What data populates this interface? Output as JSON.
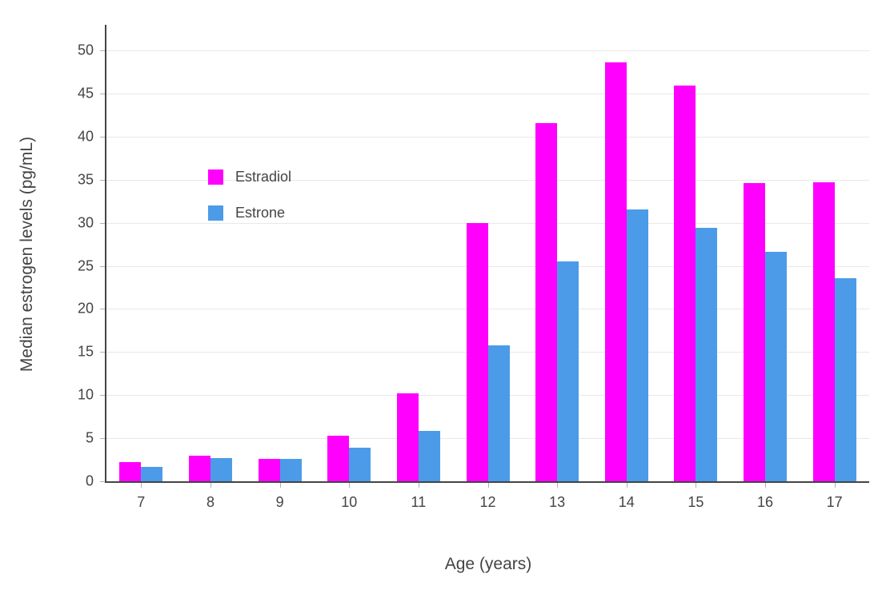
{
  "chart_data": {
    "type": "bar",
    "title": "",
    "xlabel": "Age (years)",
    "ylabel": "Median estrogen levels (pg/mL)",
    "categories": [
      "7",
      "8",
      "9",
      "10",
      "11",
      "12",
      "13",
      "14",
      "15",
      "16",
      "17"
    ],
    "series": [
      {
        "name": "Estradiol",
        "color": "#FF00FF",
        "values": [
          2.2,
          3.0,
          2.6,
          5.3,
          10.2,
          30.0,
          41.6,
          48.6,
          45.9,
          34.6,
          34.7
        ]
      },
      {
        "name": "Estrone",
        "color": "#4C9BE8",
        "values": [
          1.7,
          2.7,
          2.6,
          3.9,
          5.8,
          15.8,
          25.5,
          31.5,
          29.4,
          26.6,
          23.6
        ]
      }
    ],
    "ylim": [
      0,
      52.6
    ],
    "yticks": [
      0,
      5,
      10,
      15,
      20,
      25,
      30,
      35,
      40,
      45,
      50
    ],
    "grid": true,
    "legend_position": "inside-top-left",
    "axis_color": "#444444",
    "grid_color": "#e9e9e9",
    "text_color": "#444444"
  }
}
